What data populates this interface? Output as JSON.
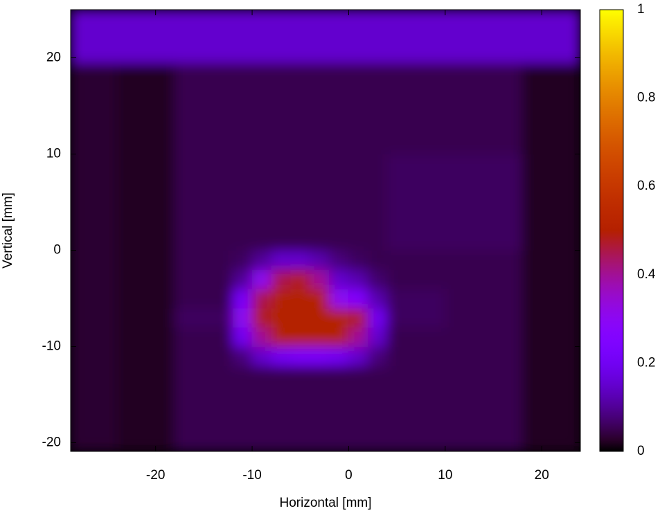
{
  "chart_data": {
    "type": "heatmap",
    "xlabel": "Horizontal [mm]",
    "ylabel": "Vertical [mm]",
    "x_edges": [
      -28.8,
      -24,
      -18,
      -12,
      -10,
      -8,
      -6,
      -4,
      -2,
      0,
      2,
      4,
      10,
      18,
      24
    ],
    "y_edges": [
      -20.9,
      -12,
      -10,
      -8,
      -6,
      -4,
      -2,
      0,
      10,
      19.5,
      25
    ],
    "z": [
      [
        0.03,
        0.02,
        0.05,
        0.05,
        0.05,
        0.05,
        0.05,
        0.05,
        0.05,
        0.05,
        0.05,
        0.05,
        0.05,
        0.02
      ],
      [
        0.03,
        0.02,
        0.05,
        0.08,
        0.15,
        0.2,
        0.22,
        0.22,
        0.2,
        0.15,
        0.08,
        0.05,
        0.05,
        0.02
      ],
      [
        0.03,
        0.02,
        0.05,
        0.2,
        0.4,
        0.5,
        0.5,
        0.5,
        0.5,
        0.4,
        0.15,
        0.05,
        0.05,
        0.02
      ],
      [
        0.03,
        0.02,
        0.06,
        0.3,
        0.48,
        0.5,
        0.5,
        0.5,
        0.5,
        0.48,
        0.2,
        0.06,
        0.05,
        0.02
      ],
      [
        0.03,
        0.02,
        0.05,
        0.22,
        0.45,
        0.5,
        0.5,
        0.5,
        0.3,
        0.25,
        0.12,
        0.06,
        0.05,
        0.02
      ],
      [
        0.03,
        0.02,
        0.05,
        0.1,
        0.3,
        0.45,
        0.48,
        0.4,
        0.15,
        0.12,
        0.07,
        0.05,
        0.05,
        0.02
      ],
      [
        0.03,
        0.02,
        0.05,
        0.06,
        0.1,
        0.15,
        0.15,
        0.12,
        0.08,
        0.06,
        0.05,
        0.05,
        0.05,
        0.02
      ],
      [
        0.03,
        0.02,
        0.05,
        0.05,
        0.05,
        0.05,
        0.05,
        0.05,
        0.05,
        0.05,
        0.05,
        0.06,
        0.06,
        0.02
      ],
      [
        0.03,
        0.02,
        0.05,
        0.05,
        0.05,
        0.05,
        0.05,
        0.05,
        0.05,
        0.05,
        0.05,
        0.05,
        0.05,
        0.02
      ],
      [
        0.15,
        0.15,
        0.15,
        0.15,
        0.15,
        0.15,
        0.15,
        0.15,
        0.15,
        0.15,
        0.15,
        0.15,
        0.15,
        0.15
      ]
    ],
    "xlim": [
      -28.8,
      24
    ],
    "ylim": [
      -20.9,
      25
    ],
    "xticks": [
      -20,
      -10,
      0,
      10,
      20
    ],
    "yticks": [
      -20,
      -10,
      0,
      10,
      20
    ],
    "zlim": [
      0,
      1
    ],
    "zticks": [
      0,
      0.2,
      0.4,
      0.6,
      0.8,
      1
    ],
    "colormap": "gnuplot"
  }
}
